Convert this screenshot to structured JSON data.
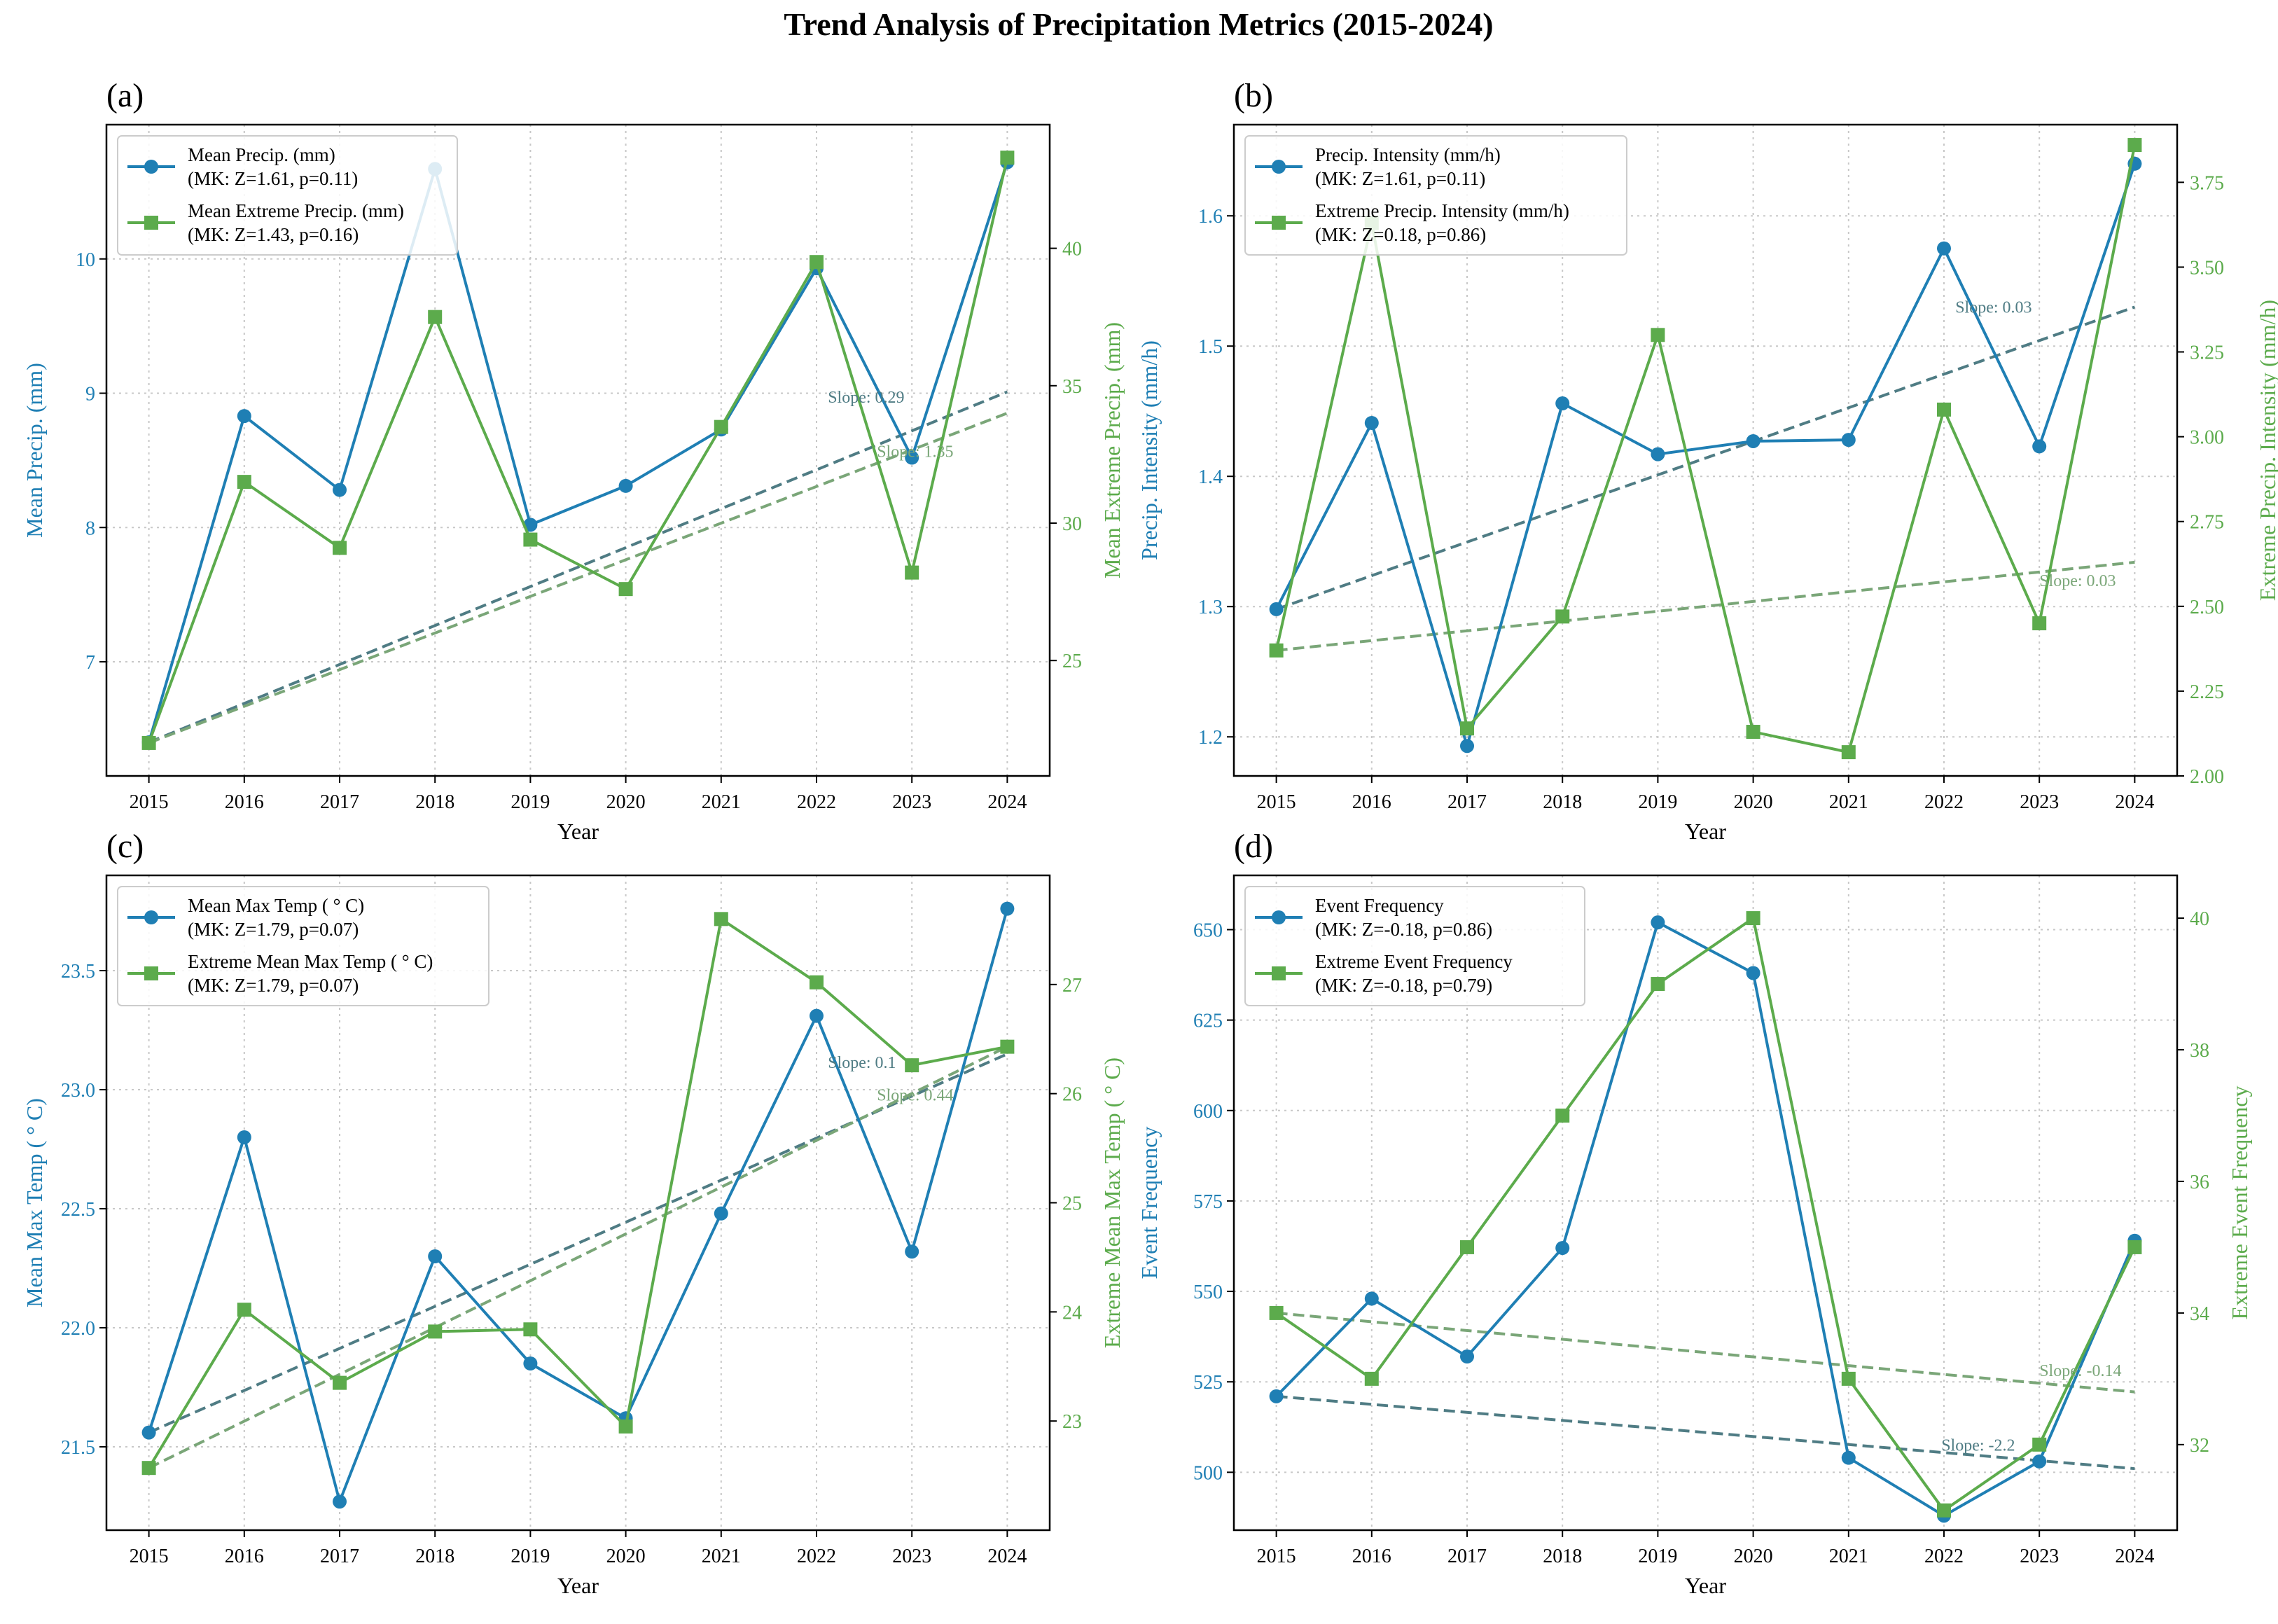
{
  "figure": {
    "title": "Trend Analysis of Precipitation Metrics (2015-2024)"
  },
  "colors": {
    "primary": "#1f7fb4",
    "secondary": "#5cab4c",
    "trend_primary": "#4f7c84",
    "trend_secondary": "#7aa678",
    "grid": "#c8c8c8",
    "axis": "#000000"
  },
  "chart_data": [
    {
      "type": "line",
      "panel_label": "(a)",
      "xlabel": "Year",
      "x": [
        2015,
        2016,
        2017,
        2018,
        2019,
        2020,
        2021,
        2022,
        2023,
        2024
      ],
      "ylabel_left": "Mean Precip. (mm)",
      "ylabel_right": "Mean Extreme Precip. (mm)",
      "ylim_left": [
        6.15,
        11.0
      ],
      "yticks_left": [
        "7",
        "8",
        "9",
        "10"
      ],
      "ylim_right": [
        20.8,
        44.5
      ],
      "yticks_right": [
        "25",
        "30",
        "35",
        "40"
      ],
      "grid": true,
      "legend_position": "upper-left",
      "series": [
        {
          "name": "Mean Precip. (mm)",
          "mk": "(MK: Z=1.61, p=0.11)",
          "axis": "left",
          "marker": "circle",
          "values": [
            6.4,
            8.83,
            8.28,
            10.67,
            8.02,
            8.31,
            8.73,
            9.93,
            8.52,
            10.72
          ],
          "trend": [
            6.4,
            9.01
          ],
          "slope_label": "Slope: 0.29"
        },
        {
          "name": "Mean Extreme Precip. (mm)",
          "mk": "(MK: Z=1.43, p=0.16)",
          "axis": "right",
          "marker": "square",
          "values": [
            22.0,
            31.5,
            29.1,
            37.5,
            29.4,
            27.6,
            33.5,
            39.5,
            28.2,
            43.3
          ],
          "trend": [
            22.0,
            34.0
          ],
          "slope_label": "Slope: 1.35"
        }
      ]
    },
    {
      "type": "line",
      "panel_label": "(b)",
      "xlabel": "Year",
      "x": [
        2015,
        2016,
        2017,
        2018,
        2019,
        2020,
        2021,
        2022,
        2023,
        2024
      ],
      "ylabel_left": "Precip. Intensity (mm/h)",
      "ylabel_right": "Extreme Precip. Intensity (mm/h)",
      "ylim_left": [
        1.17,
        1.67
      ],
      "yticks_left": [
        "1.2",
        "1.3",
        "1.4",
        "1.5",
        "1.6"
      ],
      "ylim_right": [
        2.0,
        3.92
      ],
      "yticks_right": [
        "2.00",
        "2.25",
        "2.50",
        "2.75",
        "3.00",
        "3.25",
        "3.50",
        "3.75"
      ],
      "grid": true,
      "legend_position": "upper-left",
      "series": [
        {
          "name": "Precip. Intensity (mm/h)",
          "mk": "(MK: Z=1.61, p=0.11)",
          "axis": "left",
          "marker": "circle",
          "values": [
            1.298,
            1.441,
            1.193,
            1.456,
            1.417,
            1.427,
            1.428,
            1.575,
            1.423,
            1.64
          ],
          "trend": [
            1.298,
            1.53
          ],
          "slope_label": "Slope: 0.03"
        },
        {
          "name": "Extreme Precip. Intensity (mm/h)",
          "mk": "(MK: Z=0.18, p=0.86)",
          "axis": "right",
          "marker": "square",
          "values": [
            2.37,
            3.63,
            2.14,
            2.47,
            3.3,
            2.13,
            2.07,
            3.08,
            2.45,
            3.86
          ],
          "trend": [
            2.37,
            2.63
          ],
          "slope_label": "Slope: 0.03"
        }
      ]
    },
    {
      "type": "line",
      "panel_label": "(c)",
      "xlabel": "Year",
      "x": [
        2015,
        2016,
        2017,
        2018,
        2019,
        2020,
        2021,
        2022,
        2023,
        2024
      ],
      "ylabel_left": "Mean Max Temp ( ° C)",
      "ylabel_right": "Extreme Mean Max Temp ( ° C)",
      "ylim_left": [
        21.15,
        23.9
      ],
      "yticks_left": [
        "21.5",
        "22.0",
        "22.5",
        "23.0",
        "23.5"
      ],
      "ylim_right": [
        22.0,
        28.0
      ],
      "yticks_right": [
        "23",
        "24",
        "25",
        "26",
        "27"
      ],
      "grid": true,
      "legend_position": "upper-left",
      "series": [
        {
          "name": "Mean Max Temp ( ° C)",
          "mk": "(MK: Z=1.79, p=0.07)",
          "axis": "left",
          "marker": "circle",
          "values": [
            21.56,
            22.8,
            21.27,
            22.3,
            21.85,
            21.62,
            22.48,
            23.31,
            22.32,
            23.76
          ],
          "trend": [
            21.56,
            23.15
          ],
          "slope_label": "Slope: 0.1"
        },
        {
          "name": "Extreme Mean Max Temp ( ° C)",
          "mk": "(MK: Z=1.79, p=0.07)",
          "axis": "right",
          "marker": "square",
          "values": [
            22.57,
            24.02,
            23.35,
            23.82,
            23.84,
            22.95,
            27.6,
            27.02,
            26.26,
            26.43
          ],
          "trend": [
            22.57,
            26.43
          ],
          "slope_label": "Slope: 0.44"
        }
      ]
    },
    {
      "type": "line",
      "panel_label": "(d)",
      "xlabel": "Year",
      "x": [
        2015,
        2016,
        2017,
        2018,
        2019,
        2020,
        2021,
        2022,
        2023,
        2024
      ],
      "ylabel_left": "Event Frequency",
      "ylabel_right": "Extreme Event Frequency",
      "ylim_left": [
        484,
        665
      ],
      "yticks_left": [
        "500",
        "525",
        "550",
        "575",
        "600",
        "625",
        "650"
      ],
      "ylim_right": [
        30.7,
        40.65
      ],
      "yticks_right": [
        "32",
        "34",
        "36",
        "38",
        "40"
      ],
      "grid": true,
      "legend_position": "upper-left",
      "series": [
        {
          "name": "Event Frequency",
          "mk": "(MK: Z=-0.18, p=0.86)",
          "axis": "left",
          "marker": "circle",
          "values": [
            521,
            548,
            532,
            562,
            652,
            638,
            504,
            488,
            503,
            564
          ],
          "trend": [
            521,
            501
          ],
          "slope_label": "Slope: -2.2"
        },
        {
          "name": "Extreme Event Frequency",
          "mk": "(MK: Z=-0.18, p=0.79)",
          "axis": "right",
          "marker": "square",
          "values": [
            34,
            33,
            35,
            37,
            39,
            40,
            33,
            31,
            32,
            35
          ],
          "trend": [
            34,
            32.8
          ],
          "slope_label": "Slope: -0.14"
        }
      ]
    }
  ]
}
